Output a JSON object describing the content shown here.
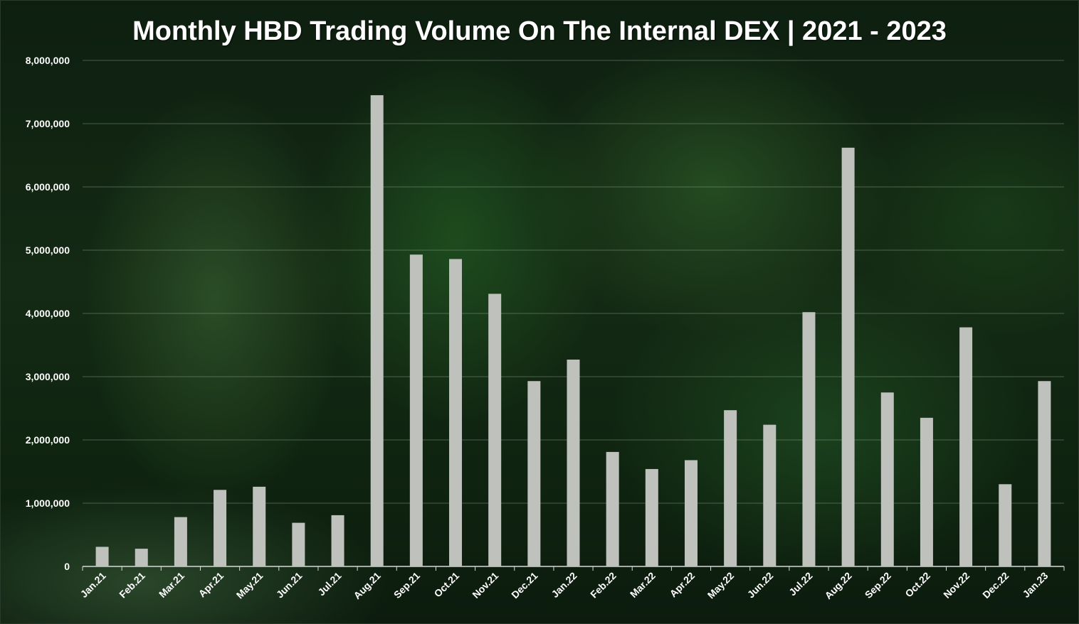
{
  "chart_data": {
    "type": "bar",
    "title": "Monthly HBD Trading Volume On The Internal DEX | 2021 - 2023",
    "xlabel": "",
    "ylabel": "",
    "ylim": [
      0,
      8000000
    ],
    "y_ticks": [
      "0",
      "1,000,000",
      "2,000,000",
      "3,000,000",
      "4,000,000",
      "5,000,000",
      "6,000,000",
      "7,000,000",
      "8,000,000"
    ],
    "grid": "horizontal",
    "legend": "none",
    "bar_color": "#bfc1bd",
    "categories": [
      "Jan.21",
      "Feb.21",
      "Mar.21",
      "Apr.21",
      "May.21",
      "Jun.21",
      "Jul.21",
      "Aug.21",
      "Sep.21",
      "Oct.21",
      "Nov.21",
      "Dec.21",
      "Jan.22",
      "Feb.22",
      "Mar.22",
      "Apr.22",
      "May.22",
      "Jun.22",
      "Jul.22",
      "Aug.22",
      "Sep.22",
      "Oct.22",
      "Nov.22",
      "Dec.22",
      "Jan.23"
    ],
    "values": [
      310000,
      280000,
      780000,
      1210000,
      1260000,
      690000,
      810000,
      7450000,
      4930000,
      4860000,
      4310000,
      2930000,
      3270000,
      1810000,
      1540000,
      1680000,
      2470000,
      2240000,
      4020000,
      6620000,
      2750000,
      2350000,
      3780000,
      1300000,
      2930000
    ]
  }
}
